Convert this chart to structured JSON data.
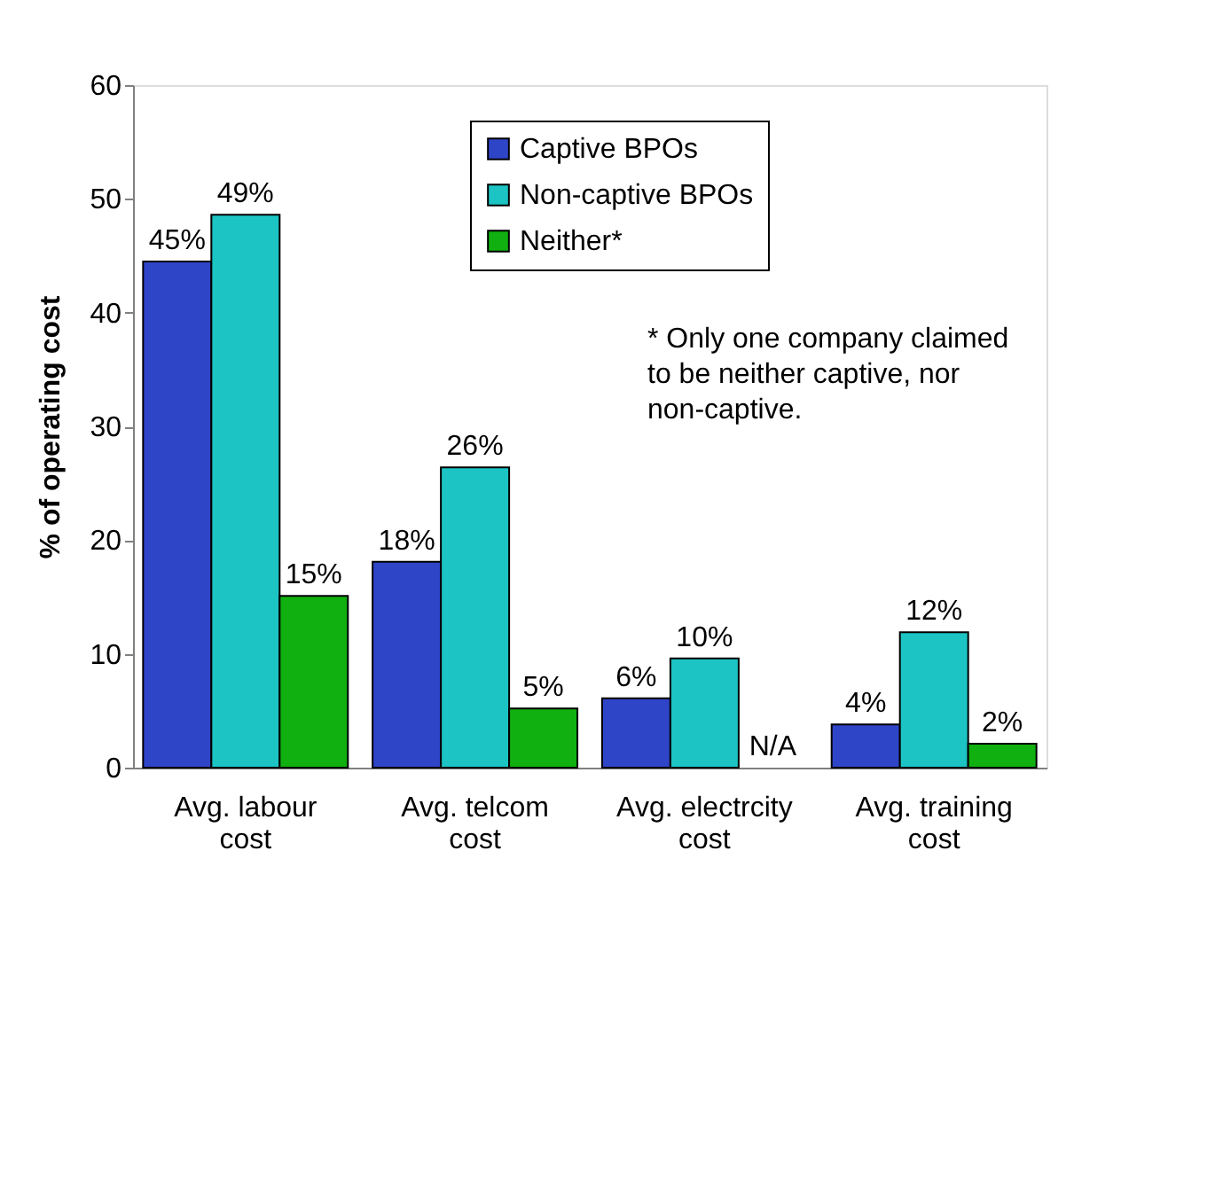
{
  "chart_data": {
    "type": "bar",
    "ylabel": "% of operating cost",
    "categories": [
      "Avg. labour cost",
      "Avg. telcom cost",
      "Avg. electrcity cost",
      "Avg. training cost"
    ],
    "series": [
      {
        "name": "Captive BPOs",
        "color": "#2f45c8",
        "values": [
          44.5,
          18.1,
          6.1,
          3.8
        ],
        "value_labels": [
          "45%",
          "18%",
          "6%",
          "4%"
        ]
      },
      {
        "name": "Non-captive BPOs",
        "color": "#1cc4c4",
        "values": [
          48.6,
          26.4,
          9.6,
          11.9
        ],
        "value_labels": [
          "49%",
          "26%",
          "10%",
          "12%"
        ]
      },
      {
        "name": "Neither*",
        "color": "#10b010",
        "values": [
          15.1,
          5.2,
          null,
          2.1
        ],
        "value_labels": [
          "15%",
          "5%",
          "N/A",
          "2%"
        ]
      }
    ],
    "ylim": [
      0,
      60
    ],
    "yticks": [
      0,
      10,
      20,
      30,
      40,
      50,
      60
    ],
    "grid": false,
    "legend": "top",
    "annotations": [
      "* Only one company claimed to be neither captive, nor non-captive."
    ]
  }
}
